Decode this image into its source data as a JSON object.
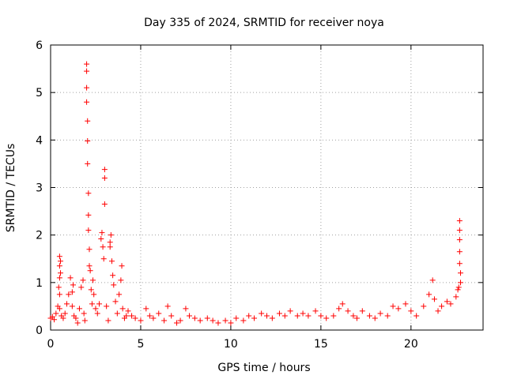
{
  "chart_data": {
    "type": "scatter",
    "title": "Day 335 of 2024, SRMTID for receiver noya",
    "xlabel": "GPS time / hours",
    "ylabel": "SRMTID / TECUs",
    "xlim": [
      0,
      24
    ],
    "ylim": [
      0,
      6
    ],
    "x_ticks": [
      0,
      5,
      10,
      15,
      20
    ],
    "y_ticks": [
      0,
      1,
      2,
      3,
      4,
      5,
      6
    ],
    "x_tick_labels": [
      "0",
      "5",
      "10",
      "15",
      "20"
    ],
    "y_tick_labels": [
      "0",
      "1",
      "2",
      "3",
      "4",
      "5",
      "6"
    ],
    "grid": true,
    "marker": "+",
    "series": [
      {
        "name": "SRMTID",
        "color": "#ff0000",
        "x": [
          0.0,
          0.1,
          0.2,
          0.3,
          0.4,
          0.45,
          0.5,
          0.5,
          0.5,
          0.5,
          0.5,
          0.55,
          0.55,
          0.6,
          0.7,
          0.8,
          0.9,
          1.0,
          1.1,
          1.2,
          1.2,
          1.25,
          1.3,
          1.4,
          1.5,
          1.6,
          1.7,
          1.8,
          1.85,
          1.9,
          2.0,
          2.0,
          2.0,
          2.0,
          2.05,
          2.05,
          2.05,
          2.1,
          2.1,
          2.1,
          2.15,
          2.15,
          2.2,
          2.25,
          2.3,
          2.35,
          2.4,
          2.5,
          2.6,
          2.7,
          2.8,
          2.85,
          2.9,
          2.95,
          3.0,
          3.0,
          3.0,
          3.1,
          3.2,
          3.3,
          3.3,
          3.35,
          3.4,
          3.45,
          3.5,
          3.6,
          3.7,
          3.8,
          3.9,
          3.95,
          4.0,
          4.1,
          4.2,
          4.3,
          4.5,
          4.7,
          5.0,
          5.3,
          5.5,
          5.7,
          6.0,
          6.3,
          6.5,
          6.7,
          7.0,
          7.2,
          7.5,
          7.7,
          8.0,
          8.3,
          8.7,
          9.0,
          9.3,
          9.7,
          10.0,
          10.3,
          10.7,
          11.0,
          11.3,
          11.7,
          12.0,
          12.3,
          12.7,
          13.0,
          13.3,
          13.7,
          14.0,
          14.3,
          14.7,
          15.0,
          15.3,
          15.7,
          16.0,
          16.2,
          16.5,
          16.8,
          17.0,
          17.3,
          17.7,
          18.0,
          18.3,
          18.7,
          19.0,
          19.3,
          19.7,
          20.0,
          20.3,
          20.7,
          21.0,
          21.2,
          21.3,
          21.5,
          21.7,
          22.0,
          22.2,
          22.5,
          22.6,
          22.65,
          22.7,
          22.7,
          22.7,
          22.7,
          22.7,
          22.75,
          22.75
        ],
        "y": [
          0.25,
          0.28,
          0.22,
          0.35,
          0.5,
          0.9,
          1.55,
          1.35,
          1.1,
          0.75,
          0.45,
          1.45,
          1.2,
          0.3,
          0.25,
          0.35,
          0.55,
          0.75,
          1.1,
          0.8,
          0.5,
          0.95,
          0.3,
          0.25,
          0.15,
          0.45,
          0.9,
          1.05,
          0.35,
          0.2,
          5.6,
          5.45,
          5.1,
          4.8,
          4.4,
          3.98,
          3.5,
          2.88,
          2.42,
          2.1,
          1.7,
          1.35,
          1.25,
          0.85,
          0.55,
          1.05,
          0.75,
          0.45,
          0.35,
          0.55,
          1.92,
          2.05,
          1.75,
          1.5,
          3.38,
          3.2,
          2.65,
          0.5,
          0.2,
          1.85,
          1.75,
          2.0,
          1.45,
          1.15,
          0.95,
          0.6,
          0.35,
          0.75,
          1.05,
          1.35,
          0.45,
          0.25,
          0.3,
          0.4,
          0.3,
          0.25,
          0.2,
          0.45,
          0.3,
          0.25,
          0.35,
          0.2,
          0.5,
          0.3,
          0.15,
          0.2,
          0.45,
          0.3,
          0.25,
          0.2,
          0.25,
          0.2,
          0.15,
          0.2,
          0.15,
          0.25,
          0.2,
          0.3,
          0.25,
          0.35,
          0.3,
          0.25,
          0.35,
          0.3,
          0.4,
          0.3,
          0.35,
          0.3,
          0.4,
          0.3,
          0.25,
          0.3,
          0.45,
          0.55,
          0.4,
          0.3,
          0.25,
          0.4,
          0.3,
          0.25,
          0.35,
          0.3,
          0.5,
          0.45,
          0.55,
          0.4,
          0.3,
          0.5,
          0.75,
          1.05,
          0.65,
          0.4,
          0.5,
          0.6,
          0.55,
          0.7,
          0.85,
          0.9,
          2.3,
          2.1,
          1.9,
          1.65,
          1.4,
          1.2,
          1.0
        ]
      }
    ]
  }
}
